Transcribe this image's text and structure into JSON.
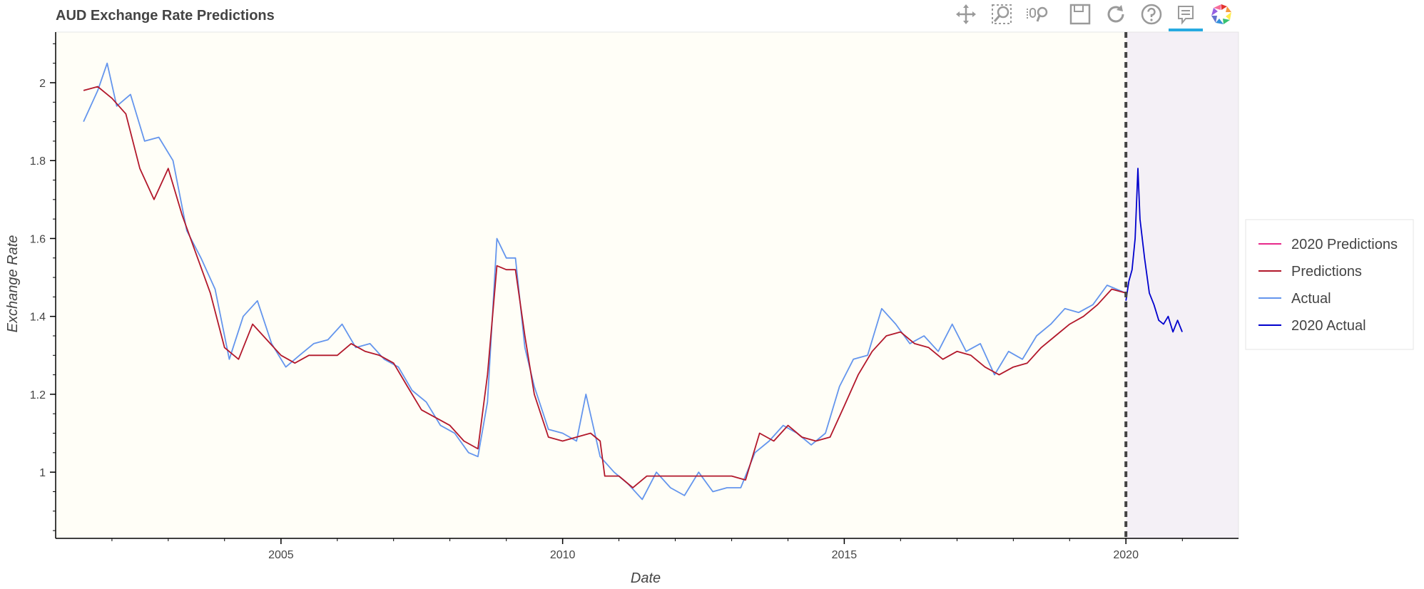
{
  "toolbar": {
    "tools": [
      {
        "name": "pan-icon"
      },
      {
        "name": "box-zoom-icon"
      },
      {
        "name": "wheel-zoom-icon"
      },
      {
        "name": "save-icon"
      },
      {
        "name": "reset-icon"
      },
      {
        "name": "help-icon"
      },
      {
        "name": "hover-icon",
        "active": true
      },
      {
        "name": "bokeh-logo-icon"
      }
    ]
  },
  "chart_data": {
    "type": "line",
    "title": "AUD Exchange Rate Predictions",
    "xlabel": "Date",
    "ylabel": "Exchange Rate",
    "xlim": [
      "2001-01-01",
      "2021-12-31"
    ],
    "ylim": [
      0.83,
      2.13
    ],
    "x_ticks": [
      "2005",
      "2010",
      "2015",
      "2020"
    ],
    "y_ticks": [
      "1",
      "1.2",
      "1.4",
      "1.6",
      "1.8",
      "2"
    ],
    "legend_position": "right",
    "divider_date": "2020-01-01",
    "shading": {
      "before_divider": "#fffef7",
      "after_divider": "#f4f0f6"
    },
    "legend": [
      "2020 Predictions",
      "Predictions",
      "Actual",
      "2020 Actual"
    ],
    "series": [
      {
        "name": "Predictions",
        "color": "#b2182b",
        "points": [
          [
            "2001-07-01",
            1.98
          ],
          [
            "2001-10-01",
            1.99
          ],
          [
            "2002-01-01",
            1.96
          ],
          [
            "2002-04-01",
            1.92
          ],
          [
            "2002-07-01",
            1.78
          ],
          [
            "2002-10-01",
            1.7
          ],
          [
            "2003-01-01",
            1.78
          ],
          [
            "2003-04-01",
            1.66
          ],
          [
            "2003-07-01",
            1.56
          ],
          [
            "2003-10-01",
            1.46
          ],
          [
            "2004-01-01",
            1.32
          ],
          [
            "2004-04-01",
            1.29
          ],
          [
            "2004-07-01",
            1.38
          ],
          [
            "2004-10-01",
            1.34
          ],
          [
            "2005-01-01",
            1.3
          ],
          [
            "2005-04-01",
            1.28
          ],
          [
            "2005-07-01",
            1.3
          ],
          [
            "2005-10-01",
            1.3
          ],
          [
            "2006-01-01",
            1.3
          ],
          [
            "2006-04-01",
            1.33
          ],
          [
            "2006-07-01",
            1.31
          ],
          [
            "2006-10-01",
            1.3
          ],
          [
            "2007-01-01",
            1.28
          ],
          [
            "2007-04-01",
            1.22
          ],
          [
            "2007-07-01",
            1.16
          ],
          [
            "2007-10-01",
            1.14
          ],
          [
            "2008-01-01",
            1.12
          ],
          [
            "2008-04-01",
            1.08
          ],
          [
            "2008-07-01",
            1.06
          ],
          [
            "2008-09-01",
            1.25
          ],
          [
            "2008-11-01",
            1.53
          ],
          [
            "2009-01-01",
            1.52
          ],
          [
            "2009-03-01",
            1.52
          ],
          [
            "2009-05-01",
            1.35
          ],
          [
            "2009-07-01",
            1.2
          ],
          [
            "2009-10-01",
            1.09
          ],
          [
            "2010-01-01",
            1.08
          ],
          [
            "2010-04-01",
            1.09
          ],
          [
            "2010-07-01",
            1.1
          ],
          [
            "2010-09-01",
            1.08
          ],
          [
            "2010-10-01",
            0.99
          ],
          [
            "2011-01-01",
            0.99
          ],
          [
            "2011-04-01",
            0.96
          ],
          [
            "2011-07-01",
            0.99
          ],
          [
            "2012-01-01",
            0.99
          ],
          [
            "2012-07-01",
            0.99
          ],
          [
            "2013-01-01",
            0.99
          ],
          [
            "2013-04-01",
            0.98
          ],
          [
            "2013-07-01",
            1.1
          ],
          [
            "2013-10-01",
            1.08
          ],
          [
            "2014-01-01",
            1.12
          ],
          [
            "2014-04-01",
            1.09
          ],
          [
            "2014-07-01",
            1.08
          ],
          [
            "2014-10-01",
            1.09
          ],
          [
            "2015-01-01",
            1.17
          ],
          [
            "2015-04-01",
            1.25
          ],
          [
            "2015-07-01",
            1.31
          ],
          [
            "2015-10-01",
            1.35
          ],
          [
            "2016-01-01",
            1.36
          ],
          [
            "2016-04-01",
            1.33
          ],
          [
            "2016-07-01",
            1.32
          ],
          [
            "2016-10-01",
            1.29
          ],
          [
            "2017-01-01",
            1.31
          ],
          [
            "2017-04-01",
            1.3
          ],
          [
            "2017-07-01",
            1.27
          ],
          [
            "2017-10-01",
            1.25
          ],
          [
            "2018-01-01",
            1.27
          ],
          [
            "2018-04-01",
            1.28
          ],
          [
            "2018-07-01",
            1.32
          ],
          [
            "2018-10-01",
            1.35
          ],
          [
            "2019-01-01",
            1.38
          ],
          [
            "2019-04-01",
            1.4
          ],
          [
            "2019-07-01",
            1.43
          ],
          [
            "2019-10-01",
            1.47
          ],
          [
            "2019-12-31",
            1.46
          ]
        ]
      },
      {
        "name": "Actual",
        "color": "#6495ed",
        "points": [
          [
            "2001-07-01",
            1.9
          ],
          [
            "2001-10-01",
            1.98
          ],
          [
            "2001-12-01",
            2.05
          ],
          [
            "2002-02-01",
            1.94
          ],
          [
            "2002-05-01",
            1.97
          ],
          [
            "2002-08-01",
            1.85
          ],
          [
            "2002-11-01",
            1.86
          ],
          [
            "2003-02-01",
            1.8
          ],
          [
            "2003-05-01",
            1.62
          ],
          [
            "2003-08-01",
            1.55
          ],
          [
            "2003-11-01",
            1.47
          ],
          [
            "2004-02-01",
            1.29
          ],
          [
            "2004-05-01",
            1.4
          ],
          [
            "2004-08-01",
            1.44
          ],
          [
            "2004-11-01",
            1.33
          ],
          [
            "2005-02-01",
            1.27
          ],
          [
            "2005-05-01",
            1.3
          ],
          [
            "2005-08-01",
            1.33
          ],
          [
            "2005-11-01",
            1.34
          ],
          [
            "2006-02-01",
            1.38
          ],
          [
            "2006-05-01",
            1.32
          ],
          [
            "2006-08-01",
            1.33
          ],
          [
            "2006-11-01",
            1.29
          ],
          [
            "2007-02-01",
            1.27
          ],
          [
            "2007-05-01",
            1.21
          ],
          [
            "2007-08-01",
            1.18
          ],
          [
            "2007-11-01",
            1.12
          ],
          [
            "2008-02-01",
            1.1
          ],
          [
            "2008-05-01",
            1.05
          ],
          [
            "2008-07-01",
            1.04
          ],
          [
            "2008-09-01",
            1.18
          ],
          [
            "2008-11-01",
            1.6
          ],
          [
            "2009-01-01",
            1.55
          ],
          [
            "2009-03-01",
            1.55
          ],
          [
            "2009-05-01",
            1.32
          ],
          [
            "2009-07-01",
            1.22
          ],
          [
            "2009-10-01",
            1.11
          ],
          [
            "2010-01-01",
            1.1
          ],
          [
            "2010-04-01",
            1.08
          ],
          [
            "2010-06-01",
            1.2
          ],
          [
            "2010-09-01",
            1.04
          ],
          [
            "2010-12-01",
            1.0
          ],
          [
            "2011-03-01",
            0.97
          ],
          [
            "2011-06-01",
            0.93
          ],
          [
            "2011-09-01",
            1.0
          ],
          [
            "2011-12-01",
            0.96
          ],
          [
            "2012-03-01",
            0.94
          ],
          [
            "2012-06-01",
            1.0
          ],
          [
            "2012-09-01",
            0.95
          ],
          [
            "2012-12-01",
            0.96
          ],
          [
            "2013-03-01",
            0.96
          ],
          [
            "2013-06-01",
            1.05
          ],
          [
            "2013-09-01",
            1.08
          ],
          [
            "2013-12-01",
            1.12
          ],
          [
            "2014-03-01",
            1.1
          ],
          [
            "2014-06-01",
            1.07
          ],
          [
            "2014-09-01",
            1.1
          ],
          [
            "2014-12-01",
            1.22
          ],
          [
            "2015-03-01",
            1.29
          ],
          [
            "2015-06-01",
            1.3
          ],
          [
            "2015-09-01",
            1.42
          ],
          [
            "2015-12-01",
            1.38
          ],
          [
            "2016-03-01",
            1.33
          ],
          [
            "2016-06-01",
            1.35
          ],
          [
            "2016-09-01",
            1.31
          ],
          [
            "2016-12-01",
            1.38
          ],
          [
            "2017-03-01",
            1.31
          ],
          [
            "2017-06-01",
            1.33
          ],
          [
            "2017-09-01",
            1.25
          ],
          [
            "2017-12-01",
            1.31
          ],
          [
            "2018-03-01",
            1.29
          ],
          [
            "2018-06-01",
            1.35
          ],
          [
            "2018-09-01",
            1.38
          ],
          [
            "2018-12-01",
            1.42
          ],
          [
            "2019-03-01",
            1.41
          ],
          [
            "2019-06-01",
            1.43
          ],
          [
            "2019-09-01",
            1.48
          ],
          [
            "2019-12-31",
            1.46
          ]
        ]
      },
      {
        "name": "2020 Actual",
        "color": "#0000cd",
        "points": [
          [
            "2020-01-01",
            1.44
          ],
          [
            "2020-01-20",
            1.49
          ],
          [
            "2020-02-10",
            1.52
          ],
          [
            "2020-03-01",
            1.6
          ],
          [
            "2020-03-19",
            1.78
          ],
          [
            "2020-04-01",
            1.65
          ],
          [
            "2020-05-01",
            1.55
          ],
          [
            "2020-06-01",
            1.46
          ],
          [
            "2020-07-01",
            1.43
          ],
          [
            "2020-08-01",
            1.39
          ],
          [
            "2020-09-01",
            1.38
          ],
          [
            "2020-10-01",
            1.4
          ],
          [
            "2020-11-01",
            1.36
          ],
          [
            "2020-12-01",
            1.39
          ],
          [
            "2020-12-31",
            1.36
          ]
        ]
      },
      {
        "name": "2020 Predictions",
        "color": "#e7298a",
        "points": []
      }
    ]
  }
}
